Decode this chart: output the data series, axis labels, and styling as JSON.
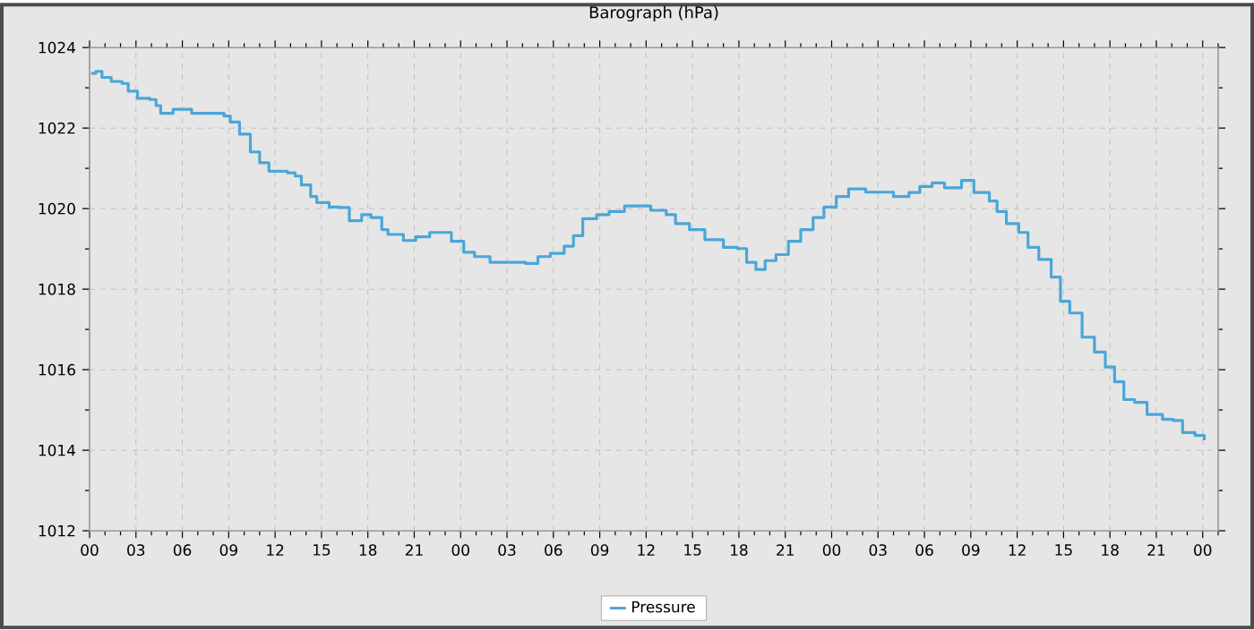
{
  "chart_data": {
    "type": "step",
    "title": "Barograph (hPa)",
    "x": [
      0.1,
      0.4,
      0.8,
      1.4,
      2.1,
      2.5,
      3.1,
      3.9,
      4.3,
      4.6,
      5.4,
      6.6,
      7.7,
      8.7,
      9.1,
      9.7,
      10.4,
      11.0,
      11.6,
      12.8,
      13.3,
      13.7,
      14.3,
      14.7,
      15.5,
      16.2,
      16.8,
      17.6,
      18.2,
      18.9,
      19.3,
      20.3,
      21.1,
      22.0,
      22.8,
      23.4,
      24.2,
      24.9,
      25.9,
      27.1,
      28.2,
      29.0,
      29.8,
      30.7,
      31.3,
      31.9,
      32.8,
      33.6,
      34.6,
      35.4,
      36.3,
      37.3,
      37.9,
      38.8,
      39.8,
      41.0,
      41.9,
      42.5,
      43.1,
      43.7,
      44.4,
      45.2,
      46.0,
      46.8,
      47.5,
      48.3,
      49.1,
      50.2,
      51.4,
      52.0,
      53.0,
      53.7,
      54.5,
      55.3,
      56.4,
      57.2,
      58.2,
      58.7,
      59.3,
      60.1,
      60.7,
      61.4,
      62.2,
      62.8,
      63.4,
      64.2,
      65.0,
      65.7,
      66.3,
      66.9,
      67.6,
      68.4,
      69.4,
      70.1,
      70.7,
      71.5,
      72.1
    ],
    "series": [
      {
        "name": "Pressure",
        "color": "#4ba6d8",
        "values": [
          1023.36,
          1023.41,
          1023.26,
          1023.16,
          1023.11,
          1022.92,
          1022.74,
          1022.71,
          1022.56,
          1022.37,
          1022.47,
          1022.37,
          1022.37,
          1022.3,
          1022.15,
          1021.85,
          1021.41,
          1021.14,
          1020.93,
          1020.89,
          1020.81,
          1020.59,
          1020.3,
          1020.15,
          1020.04,
          1020.03,
          1019.7,
          1019.85,
          1019.78,
          1019.48,
          1019.36,
          1019.21,
          1019.3,
          1019.41,
          1019.41,
          1019.19,
          1018.92,
          1018.81,
          1018.67,
          1018.67,
          1018.64,
          1018.81,
          1018.89,
          1019.07,
          1019.33,
          1019.75,
          1019.85,
          1019.93,
          1020.07,
          1020.07,
          1019.96,
          1019.85,
          1019.63,
          1019.48,
          1019.23,
          1019.04,
          1019.01,
          1018.67,
          1018.49,
          1018.71,
          1018.86,
          1019.19,
          1019.48,
          1019.78,
          1020.04,
          1020.3,
          1020.49,
          1020.41,
          1020.41,
          1020.3,
          1020.4,
          1020.55,
          1020.64,
          1020.52,
          1020.7,
          1020.4,
          1020.19,
          1019.93,
          1019.63,
          1019.41,
          1019.04,
          1018.74,
          1018.3,
          1017.7,
          1017.41,
          1016.81,
          1016.44,
          1016.07,
          1015.7,
          1015.26,
          1015.19,
          1014.89,
          1014.77,
          1014.74,
          1014.44,
          1014.37,
          1014.25
        ]
      }
    ],
    "xlim": [
      0,
      73
    ],
    "xticks": [
      {
        "value": 0,
        "label": "00"
      },
      {
        "value": 1,
        "label": null
      },
      {
        "value": 2,
        "label": null
      },
      {
        "value": 3,
        "label": "03"
      },
      {
        "value": 4,
        "label": null
      },
      {
        "value": 5,
        "label": null
      },
      {
        "value": 6,
        "label": "06"
      },
      {
        "value": 7,
        "label": null
      },
      {
        "value": 8,
        "label": null
      },
      {
        "value": 9,
        "label": "09"
      },
      {
        "value": 10,
        "label": null
      },
      {
        "value": 11,
        "label": null
      },
      {
        "value": 12,
        "label": "12"
      },
      {
        "value": 13,
        "label": null
      },
      {
        "value": 14,
        "label": null
      },
      {
        "value": 15,
        "label": "15"
      },
      {
        "value": 16,
        "label": null
      },
      {
        "value": 17,
        "label": null
      },
      {
        "value": 18,
        "label": "18"
      },
      {
        "value": 19,
        "label": null
      },
      {
        "value": 20,
        "label": null
      },
      {
        "value": 21,
        "label": "21"
      },
      {
        "value": 22,
        "label": null
      },
      {
        "value": 23,
        "label": null
      },
      {
        "value": 24,
        "label": "00"
      },
      {
        "value": 25,
        "label": null
      },
      {
        "value": 26,
        "label": null
      },
      {
        "value": 27,
        "label": "03"
      },
      {
        "value": 28,
        "label": null
      },
      {
        "value": 29,
        "label": null
      },
      {
        "value": 30,
        "label": "06"
      },
      {
        "value": 31,
        "label": null
      },
      {
        "value": 32,
        "label": null
      },
      {
        "value": 33,
        "label": "09"
      },
      {
        "value": 34,
        "label": null
      },
      {
        "value": 35,
        "label": null
      },
      {
        "value": 36,
        "label": "12"
      },
      {
        "value": 37,
        "label": null
      },
      {
        "value": 38,
        "label": null
      },
      {
        "value": 39,
        "label": "15"
      },
      {
        "value": 40,
        "label": null
      },
      {
        "value": 41,
        "label": null
      },
      {
        "value": 42,
        "label": "18"
      },
      {
        "value": 43,
        "label": null
      },
      {
        "value": 44,
        "label": null
      },
      {
        "value": 45,
        "label": "21"
      },
      {
        "value": 46,
        "label": null
      },
      {
        "value": 47,
        "label": null
      },
      {
        "value": 48,
        "label": "00"
      },
      {
        "value": 49,
        "label": null
      },
      {
        "value": 50,
        "label": null
      },
      {
        "value": 51,
        "label": "03"
      },
      {
        "value": 52,
        "label": null
      },
      {
        "value": 53,
        "label": null
      },
      {
        "value": 54,
        "label": "06"
      },
      {
        "value": 55,
        "label": null
      },
      {
        "value": 56,
        "label": null
      },
      {
        "value": 57,
        "label": "09"
      },
      {
        "value": 58,
        "label": null
      },
      {
        "value": 59,
        "label": null
      },
      {
        "value": 60,
        "label": "12"
      },
      {
        "value": 61,
        "label": null
      },
      {
        "value": 62,
        "label": null
      },
      {
        "value": 63,
        "label": "15"
      },
      {
        "value": 64,
        "label": null
      },
      {
        "value": 65,
        "label": null
      },
      {
        "value": 66,
        "label": "18"
      },
      {
        "value": 67,
        "label": null
      },
      {
        "value": 68,
        "label": null
      },
      {
        "value": 69,
        "label": "21"
      },
      {
        "value": 70,
        "label": null
      },
      {
        "value": 71,
        "label": null
      },
      {
        "value": 72,
        "label": "00"
      },
      {
        "value": 73,
        "label": null
      }
    ],
    "ylim": [
      1012,
      1024
    ],
    "yticks": [
      1012,
      {
        "value": 1013,
        "label": null
      },
      1014,
      {
        "value": 1015,
        "label": null
      },
      1016,
      {
        "value": 1017,
        "label": null
      },
      1018,
      {
        "value": 1019,
        "label": null
      },
      1020,
      {
        "value": 1021,
        "label": null
      },
      1022,
      {
        "value": 1023,
        "label": null
      },
      1024
    ],
    "grid": true,
    "legend": "bottom"
  }
}
